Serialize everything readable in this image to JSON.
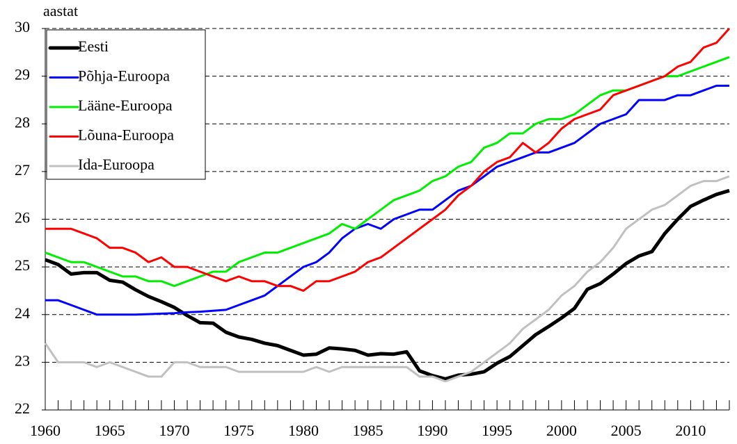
{
  "chart_data": {
    "type": "line",
    "y_label": "aastat",
    "x": [
      1960,
      1961,
      1962,
      1963,
      1964,
      1965,
      1966,
      1967,
      1968,
      1969,
      1970,
      1971,
      1972,
      1973,
      1974,
      1975,
      1976,
      1977,
      1978,
      1979,
      1980,
      1981,
      1982,
      1983,
      1984,
      1985,
      1986,
      1987,
      1988,
      1989,
      1990,
      1991,
      1992,
      1993,
      1994,
      1995,
      1996,
      1997,
      1998,
      1999,
      2000,
      2001,
      2002,
      2003,
      2004,
      2005,
      2006,
      2007,
      2008,
      2009,
      2010,
      2011,
      2012,
      2013
    ],
    "xlim": [
      1960,
      2013
    ],
    "xticks": [
      1960,
      1965,
      1970,
      1975,
      1980,
      1985,
      1990,
      1995,
      2000,
      2005,
      2010
    ],
    "ylim": [
      22,
      30
    ],
    "yticks": [
      22,
      23,
      24,
      25,
      26,
      27,
      28,
      29,
      30
    ],
    "grid": true,
    "legend": "upper left",
    "series": [
      {
        "name": "Eesti",
        "color": "#000000",
        "values": [
          25.15,
          25.05,
          24.85,
          24.88,
          24.88,
          24.72,
          24.68,
          24.52,
          24.38,
          24.27,
          24.15,
          23.98,
          23.83,
          23.82,
          23.63,
          23.53,
          23.48,
          23.4,
          23.35,
          23.25,
          23.15,
          23.17,
          23.3,
          23.28,
          23.25,
          23.15,
          23.18,
          23.17,
          23.22,
          22.82,
          22.72,
          22.65,
          22.73,
          22.75,
          22.8,
          22.98,
          23.12,
          23.35,
          23.58,
          23.75,
          23.93,
          24.13,
          24.53,
          24.65,
          24.85,
          25.07,
          25.23,
          25.32,
          25.7,
          26.0,
          26.27,
          26.4,
          26.52,
          26.6
        ]
      },
      {
        "name": "Põhja-Euroopa",
        "color": "#0000ff",
        "values": [
          24.3,
          24.3,
          24.2,
          24.1,
          24.0,
          24.0,
          24.0,
          24.0,
          24.01,
          24.02,
          24.03,
          24.05,
          24.06,
          24.08,
          24.1,
          24.2,
          24.3,
          24.4,
          24.6,
          24.8,
          25.0,
          25.1,
          25.3,
          25.6,
          25.8,
          25.9,
          25.8,
          26.0,
          26.1,
          26.2,
          26.2,
          26.4,
          26.6,
          26.7,
          26.9,
          27.1,
          27.2,
          27.3,
          27.4,
          27.4,
          27.5,
          27.6,
          27.8,
          28.0,
          28.1,
          28.2,
          28.5,
          28.5,
          28.5,
          28.6,
          28.6,
          28.7,
          28.8,
          28.8
        ]
      },
      {
        "name": "Lääne-Euroopa",
        "color": "#00ee00",
        "values": [
          25.3,
          25.2,
          25.1,
          25.1,
          25.0,
          24.9,
          24.8,
          24.8,
          24.7,
          24.7,
          24.6,
          24.7,
          24.8,
          24.9,
          24.9,
          25.1,
          25.2,
          25.3,
          25.3,
          25.4,
          25.5,
          25.6,
          25.7,
          25.9,
          25.8,
          26.0,
          26.2,
          26.4,
          26.5,
          26.6,
          26.8,
          26.9,
          27.1,
          27.2,
          27.5,
          27.6,
          27.8,
          27.8,
          28.0,
          28.1,
          28.1,
          28.2,
          28.4,
          28.6,
          28.7,
          28.7,
          28.8,
          28.9,
          29.0,
          29.0,
          29.1,
          29.2,
          29.3,
          29.4
        ]
      },
      {
        "name": "Lõuna-Euroopa",
        "color": "#ff0000",
        "values": [
          25.8,
          25.8,
          25.8,
          25.7,
          25.6,
          25.4,
          25.4,
          25.3,
          25.1,
          25.2,
          25.0,
          25.0,
          24.9,
          24.8,
          24.7,
          24.8,
          24.7,
          24.7,
          24.6,
          24.6,
          24.5,
          24.7,
          24.7,
          24.8,
          24.9,
          25.1,
          25.2,
          25.4,
          25.6,
          25.8,
          26.0,
          26.2,
          26.5,
          26.7,
          27.0,
          27.2,
          27.3,
          27.6,
          27.4,
          27.6,
          27.9,
          28.1,
          28.2,
          28.3,
          28.6,
          28.7,
          28.8,
          28.9,
          29.0,
          29.2,
          29.3,
          29.6,
          29.7,
          30.0
        ]
      },
      {
        "name": "Ida-Euroopa",
        "color": "#c0c0c0",
        "values": [
          23.4,
          23.0,
          23.0,
          23.0,
          22.9,
          23.0,
          22.9,
          22.8,
          22.7,
          22.7,
          23.0,
          23.0,
          22.9,
          22.9,
          22.9,
          22.8,
          22.8,
          22.8,
          22.8,
          22.8,
          22.8,
          22.9,
          22.8,
          22.9,
          22.9,
          22.9,
          22.9,
          22.9,
          22.9,
          22.7,
          22.7,
          22.6,
          22.7,
          22.8,
          23.0,
          23.2,
          23.4,
          23.7,
          23.9,
          24.1,
          24.4,
          24.6,
          24.9,
          25.1,
          25.4,
          25.8,
          26.0,
          26.2,
          26.3,
          26.5,
          26.7,
          26.8,
          26.8,
          26.9
        ]
      }
    ]
  }
}
